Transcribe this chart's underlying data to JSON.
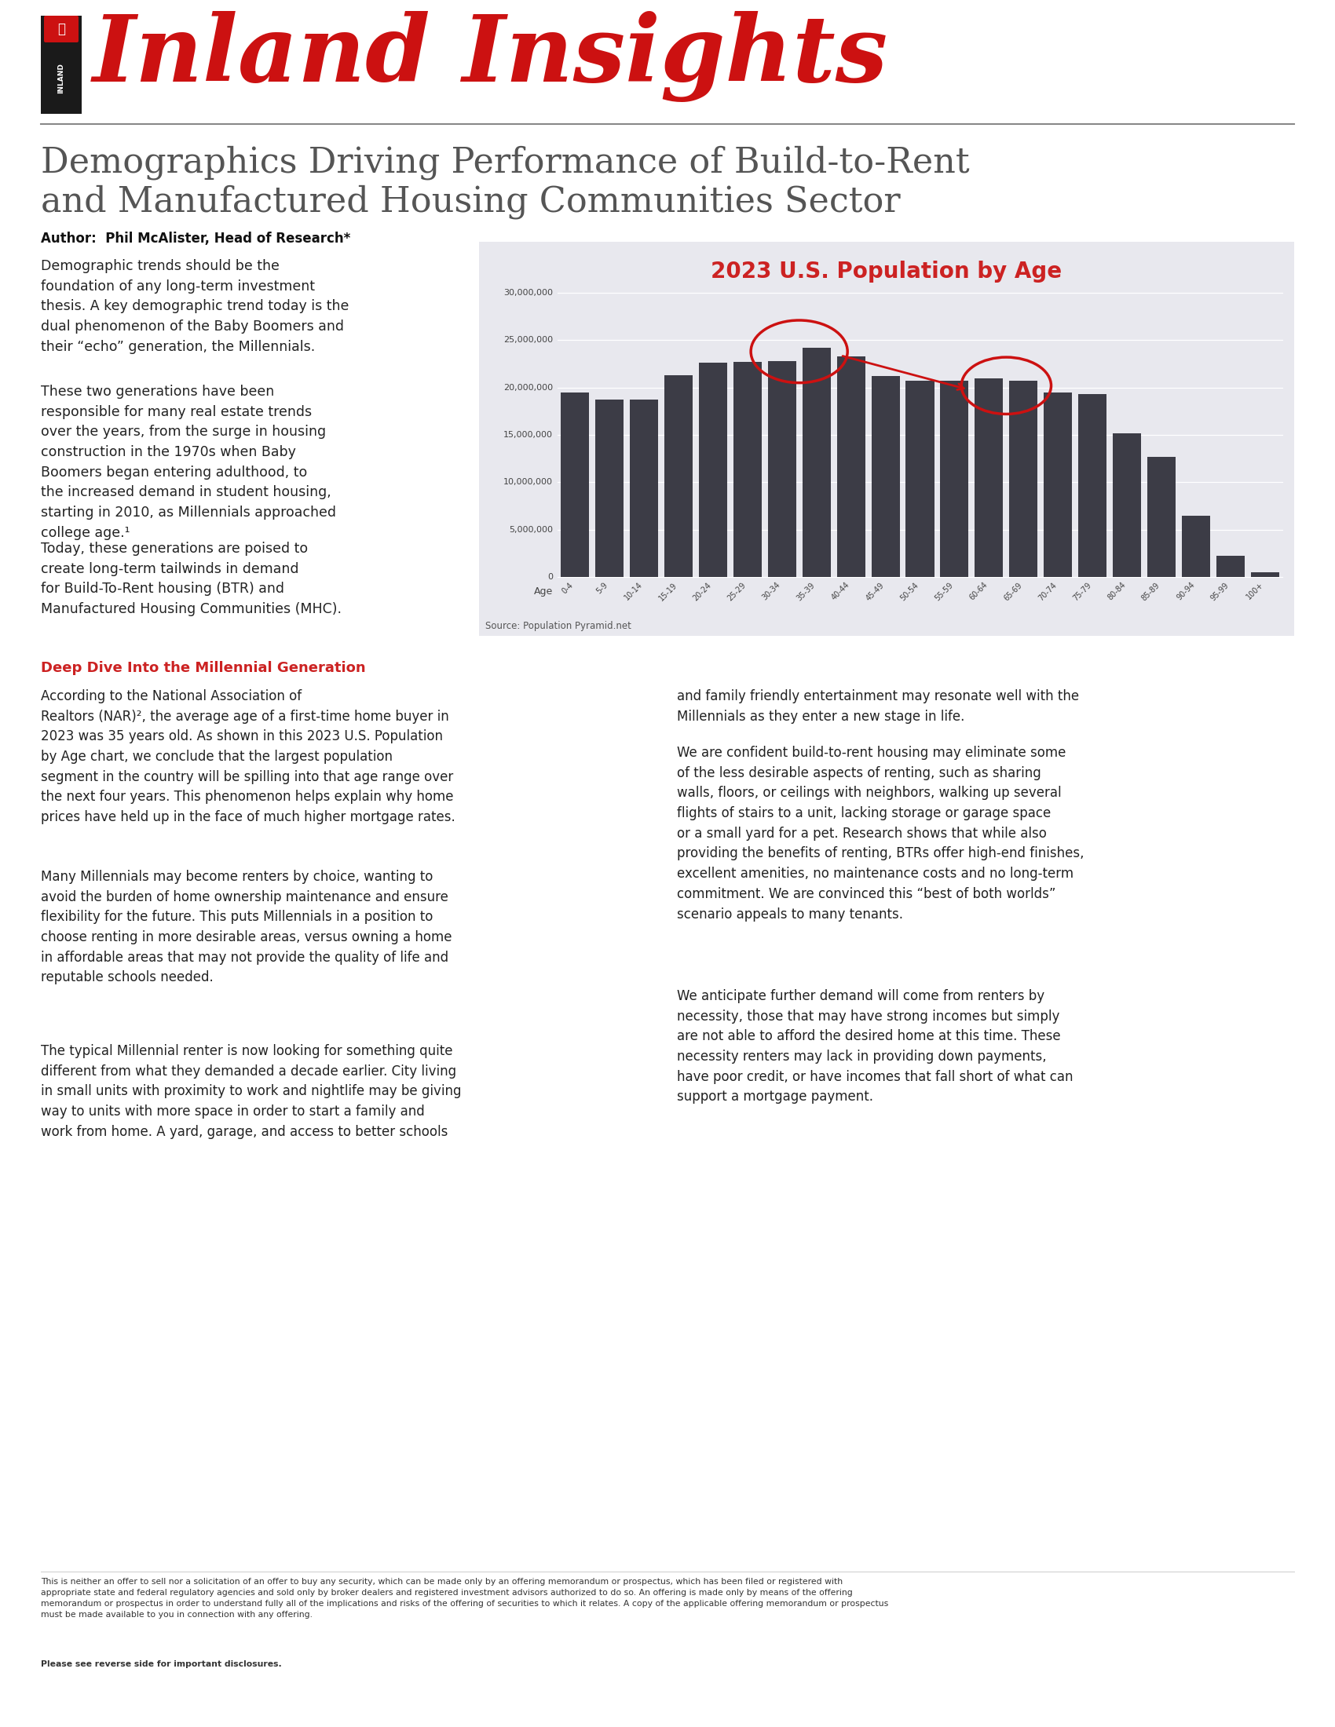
{
  "title_main": "Inland Insights",
  "article_title_line1": "Demographics Driving Performance of Build-to-Rent",
  "article_title_line2": "and Manufactured Housing Communities Sector",
  "author": "Author:  Phil McAlister, Head of Research*",
  "chart_title": "2023 U.S. Population by Age",
  "chart_source": "Source: Population Pyramid.net",
  "chart_bg_color": "#e8e8ee",
  "bar_color": "#3c3c46",
  "chart_title_color": "#cc2222",
  "age_labels": [
    "0-4",
    "5-9",
    "10-14",
    "15-19",
    "20-24",
    "25-29",
    "30-34",
    "35-39",
    "40-44",
    "45-49",
    "50-54",
    "55-59",
    "60-64",
    "65-69",
    "70-74",
    "75-79",
    "80-84",
    "85-89",
    "90-94",
    "95-99",
    "100+"
  ],
  "population_values": [
    19500000,
    18700000,
    18700000,
    21300000,
    22600000,
    22700000,
    22800000,
    24200000,
    23300000,
    21200000,
    20700000,
    20700000,
    21000000,
    20700000,
    19500000,
    19300000,
    15200000,
    12700000,
    6500000,
    2200000,
    500000
  ],
  "section_header": "Deep Dive Into the Millennial Generation",
  "section_header_color": "#cc2222",
  "para1": "Demographic trends should be the\nfoundation of any long-term investment\nthesis. A key demographic trend today is the\ndual phenomenon of the Baby Boomers and\ntheir “echo” generation, the Millennials.",
  "para2": "These two generations have been\nresponsible for many real estate trends\nover the years, from the surge in housing\nconstruction in the 1970s when Baby\nBoomers began entering adulthood, to\nthe increased demand in student housing,\nstarting in 2010, as Millennials approached\ncollege age.¹",
  "para3": "Today, these generations are poised to\ncreate long-term tailwinds in demand\nfor Build-To-Rent housing (BTR) and\nManufactured Housing Communities (MHC).",
  "para4": "According to the National Association of\nRealtors (NAR)², the average age of a first-time home buyer in\n2023 was 35 years old. As shown in this 2023 U.S. Population\nby Age chart, we conclude that the largest population\nsegment in the country will be spilling into that age range over\nthe next four years. This phenomenon helps explain why home\nprices have held up in the face of much higher mortgage rates.",
  "para5": "Many Millennials may become renters by choice, wanting to\navoid the burden of home ownership maintenance and ensure\nflexibility for the future. This puts Millennials in a position to\nchoose renting in more desirable areas, versus owning a home\nin affordable areas that may not provide the quality of life and\nreputable schools needed.",
  "para6": "The typical Millennial renter is now looking for something quite\ndifferent from what they demanded a decade earlier. City living\nin small units with proximity to work and nightlife may be giving\nway to units with more space in order to start a family and\nwork from home. A yard, garage, and access to better schools",
  "para7": "and family friendly entertainment may resonate well with the\nMillennials as they enter a new stage in life.",
  "para8": "We are confident build-to-rent housing may eliminate some\nof the less desirable aspects of renting, such as sharing\nwalls, floors, or ceilings with neighbors, walking up several\nflights of stairs to a unit, lacking storage or garage space\nor a small yard for a pet. Research shows that while also\nproviding the benefits of renting, BTRs offer high-end finishes,\nexcellent amenities, no maintenance costs and no long-term\ncommitment. We are convinced this “best of both worlds”\nscenario appeals to many tenants.",
  "para9": "We anticipate further demand will come from renters by\nnecessity, those that may have strong incomes but simply\nare not able to afford the desired home at this time. These\nnecessity renters may lack in providing down payments,\nhave poor credit, or have incomes that fall short of what can\nsupport a mortgage payment.",
  "disclaimer": "This is neither an offer to sell nor a solicitation of an offer to buy any security, which can be made only by an offering memorandum or prospectus, which has been filed or registered with\nappropriate state and federal regulatory agencies and sold only by broker dealers and registered investment advisors authorized to do so. An offering is made only by means of the offering\nmemorandum or prospectus in order to understand fully all of the implications and risks of the offering of securities to which it relates. A copy of the applicable offering memorandum or prospectus\nmust be made available to you in connection with any offering. ",
  "disclaimer_bold": "Please see reverse side for important disclosures."
}
